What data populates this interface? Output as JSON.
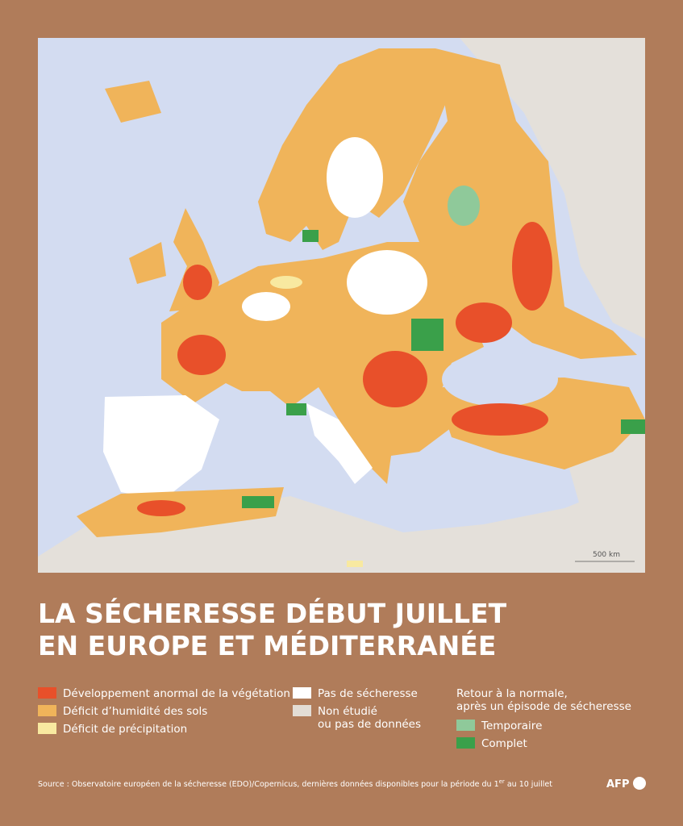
{
  "header": {
    "title_lines": [
      "LA SÉCHERESSE DÉBUT JUILLET",
      "EN EUROPE ET MÉDITERRANÉE"
    ]
  },
  "map": {
    "scale_label": "500 km"
  },
  "legend": {
    "items": [
      {
        "label_lines": [
          "Développement anormal de la végétation"
        ]
      },
      {
        "label_lines": [
          "Déficit d’humidité des sols"
        ]
      },
      {
        "label_lines": [
          "Déficit de précipitation"
        ]
      },
      {
        "label_lines": [
          "Pas de sécheresse"
        ]
      },
      {
        "label_lines": [
          "Non étudié",
          "ou pas de données"
        ]
      }
    ],
    "recovery_title_lines": [
      "Retour à la normale,",
      "après un épisode de sécheresse"
    ],
    "recovery_items": [
      {
        "label": "Temporaire"
      },
      {
        "label": "Complet"
      }
    ]
  },
  "source": {
    "text_before": "Source : Observatoire européen de la sécheresse (EDO)/Copernicus, dernières données disponibles pour la période du 1",
    "superscript": "er",
    "text_after": " au 10 juillet"
  },
  "logo": {
    "text": "AFP"
  }
}
